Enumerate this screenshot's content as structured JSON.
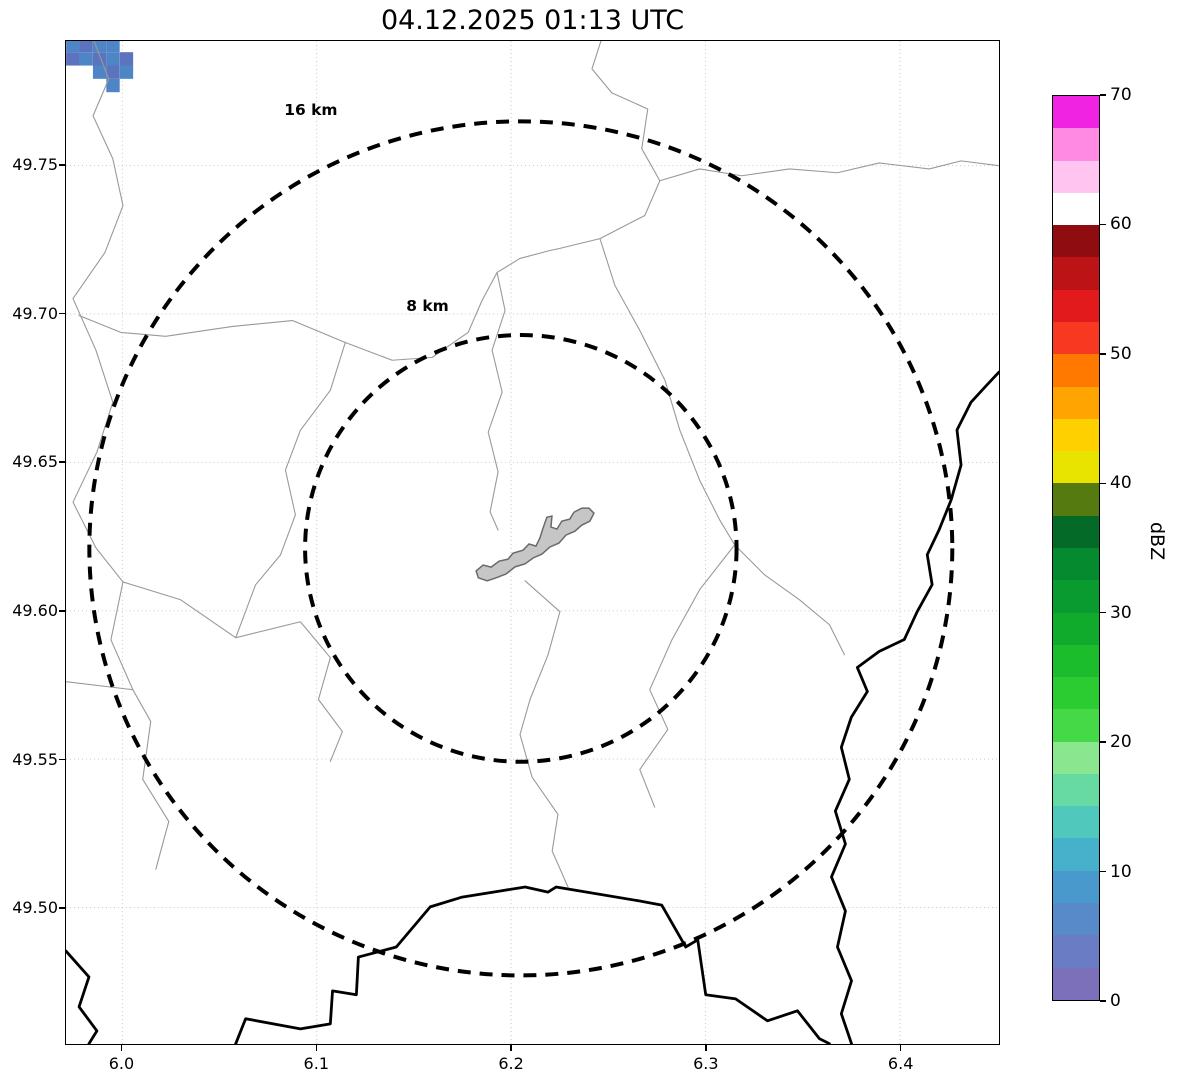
{
  "chart_data": {
    "type": "heatmap",
    "title": "04.12.2025 01:13 UTC",
    "axes": {
      "lon_min": 5.971,
      "lon_max": 6.451,
      "lat_min": 49.454,
      "lat_max": 49.792,
      "x_ticks": [
        6.0,
        6.1,
        6.2,
        6.3,
        6.4
      ],
      "x_tick_labels": [
        "6.0",
        "6.1",
        "6.2",
        "6.3",
        "6.4"
      ],
      "y_ticks": [
        49.5,
        49.55,
        49.6,
        49.65,
        49.7,
        49.75
      ],
      "y_tick_labels": [
        "49.50",
        "49.55",
        "49.60",
        "49.65",
        "49.70",
        "49.75"
      ],
      "grid": true
    },
    "colorbar": {
      "label": "dBZ",
      "vmin": 0,
      "vmax": 70,
      "ticks": [
        0,
        10,
        20,
        30,
        40,
        50,
        60,
        70
      ],
      "tick_labels": [
        "0",
        "10",
        "20",
        "30",
        "40",
        "50",
        "60",
        "70"
      ],
      "band_colors_bottom_to_top": [
        "#7d70ba",
        "#6a7cc3",
        "#5889c8",
        "#4a99cc",
        "#47b0ca",
        "#50c8bb",
        "#67daa3",
        "#8ae78f",
        "#45d948",
        "#2bcc31",
        "#1bbd2c",
        "#10ab2d",
        "#099a30",
        "#068a30",
        "#046a28",
        "#557a10",
        "#e8e400",
        "#ffd000",
        "#ffa400",
        "#ff7800",
        "#f93822",
        "#e31a1c",
        "#bc1316",
        "#8f0d10",
        "#ffffff",
        "#ffc4f0",
        "#ff8ae4",
        "#f023e3"
      ]
    },
    "range_rings": {
      "center": {
        "lon": 6.205,
        "lat": 49.621
      },
      "rings": [
        {
          "label": "8 km",
          "dlon": 0.111,
          "dlat": 0.0719,
          "label_lon": 6.157,
          "label_lat": 49.701
        },
        {
          "label": "16 km",
          "dlon": 0.222,
          "dlat": 0.1439,
          "label_lon": 6.097,
          "label_lat": 49.767
        }
      ]
    },
    "radar_echoes": {
      "cell_dlon": 0.0069,
      "cell_dlat": 0.0045,
      "cells": [
        [
          5.9745,
          49.7905,
          "#4e85c6"
        ],
        [
          5.9814,
          49.7905,
          "#5b74bd"
        ],
        [
          5.9883,
          49.7905,
          "#4e85c6"
        ],
        [
          5.9952,
          49.7905,
          "#4e85c6"
        ],
        [
          5.9745,
          49.786,
          "#5b74bd"
        ],
        [
          5.9814,
          49.786,
          "#4e85c6"
        ],
        [
          5.9883,
          49.786,
          "#5b74bd"
        ],
        [
          5.9952,
          49.786,
          "#4e85c6"
        ],
        [
          6.0021,
          49.786,
          "#5b74bd"
        ],
        [
          5.9883,
          49.7815,
          "#4e85c6"
        ],
        [
          5.9952,
          49.7815,
          "#5b74bd"
        ],
        [
          6.0021,
          49.7815,
          "#4e85c6"
        ],
        [
          5.9952,
          49.777,
          "#4e85c6"
        ]
      ]
    },
    "city_polygon": {
      "fill": "#c6c6c6",
      "stroke": "#6a6a6a",
      "points": [
        [
          6.182,
          49.6134
        ],
        [
          6.1856,
          49.6154
        ],
        [
          6.1897,
          49.6147
        ],
        [
          6.1938,
          49.6167
        ],
        [
          6.1984,
          49.6174
        ],
        [
          6.201,
          49.6194
        ],
        [
          6.2061,
          49.6204
        ],
        [
          6.2092,
          49.6225
        ],
        [
          6.2128,
          49.6218
        ],
        [
          6.2148,
          49.6245
        ],
        [
          6.2164,
          49.6278
        ],
        [
          6.2184,
          49.6315
        ],
        [
          6.221,
          49.6319
        ],
        [
          6.2205,
          49.6282
        ],
        [
          6.2236,
          49.6275
        ],
        [
          6.2261,
          49.6302
        ],
        [
          6.2302,
          49.6309
        ],
        [
          6.2323,
          49.6332
        ],
        [
          6.2364,
          49.6346
        ],
        [
          6.24,
          49.6346
        ],
        [
          6.2426,
          49.6329
        ],
        [
          6.2405,
          49.6302
        ],
        [
          6.2364,
          49.6289
        ],
        [
          6.2328,
          49.6268
        ],
        [
          6.2282,
          49.6255
        ],
        [
          6.2246,
          49.6228
        ],
        [
          6.22,
          49.6215
        ],
        [
          6.2159,
          49.6191
        ],
        [
          6.2113,
          49.6178
        ],
        [
          6.2072,
          49.6158
        ],
        [
          6.202,
          49.6148
        ],
        [
          6.1974,
          49.6124
        ],
        [
          6.1923,
          49.6111
        ],
        [
          6.1877,
          49.6101
        ],
        [
          6.1831,
          49.6111
        ]
      ]
    },
    "gray_boundaries": [
      [
        [
          5.9854,
          49.792
        ],
        [
          5.993,
          49.7792
        ],
        [
          5.9849,
          49.7668
        ],
        [
          5.9951,
          49.7523
        ],
        [
          6.0003,
          49.7365
        ],
        [
          5.991,
          49.7207
        ],
        [
          5.9746,
          49.7052
        ],
        [
          5.9864,
          49.6878
        ],
        [
          5.9951,
          49.6703
        ],
        [
          5.9869,
          49.6535
        ],
        [
          5.9746,
          49.6366
        ],
        [
          5.9864,
          49.6212
        ],
        [
          6.0003,
          49.6097
        ],
        [
          5.9941,
          49.5902
        ],
        [
          6.0054,
          49.5734
        ],
        [
          6.0146,
          49.5627
        ],
        [
          6.0105,
          49.5432
        ],
        [
          6.0239,
          49.529
        ],
        [
          6.0172,
          49.5129
        ]
      ],
      [
        [
          6.0054,
          49.5734
        ],
        [
          5.971,
          49.5761
        ]
      ],
      [
        [
          5.9777,
          49.6995
        ],
        [
          5.9992,
          49.6938
        ],
        [
          6.0223,
          49.6925
        ],
        [
          6.0567,
          49.6958
        ],
        [
          6.0875,
          49.6978
        ],
        [
          6.1147,
          49.6904
        ],
        [
          6.1388,
          49.6844
        ],
        [
          6.1594,
          49.6854
        ],
        [
          6.1779,
          49.6938
        ],
        [
          6.1851,
          49.7046
        ],
        [
          6.1928,
          49.714
        ],
        [
          6.2046,
          49.7187
        ],
        [
          6.22,
          49.7214
        ]
      ],
      [
        [
          6.2462,
          49.792
        ],
        [
          6.2416,
          49.7826
        ],
        [
          6.2518,
          49.7745
        ],
        [
          6.2703,
          49.7691
        ],
        [
          6.2672,
          49.7557
        ],
        [
          6.2765,
          49.7449
        ],
        [
          6.2688,
          49.7332
        ],
        [
          6.2457,
          49.7254
        ],
        [
          6.2251,
          49.7221
        ],
        [
          6.22,
          49.7214
        ]
      ],
      [
        [
          6.2765,
          49.7449
        ],
        [
          6.297,
          49.7489
        ],
        [
          6.3186,
          49.7466
        ],
        [
          6.3432,
          49.7489
        ],
        [
          6.3679,
          49.7476
        ],
        [
          6.3894,
          49.7509
        ],
        [
          6.4151,
          49.7489
        ],
        [
          6.4315,
          49.7516
        ],
        [
          6.451,
          49.75
        ]
      ],
      [
        [
          6.2457,
          49.7254
        ],
        [
          6.2534,
          49.7096
        ],
        [
          6.2662,
          49.6945
        ],
        [
          6.2791,
          49.6777
        ],
        [
          6.2868,
          49.6608
        ],
        [
          6.297,
          49.644
        ],
        [
          6.3073,
          49.6306
        ],
        [
          6.315,
          49.6222
        ],
        [
          6.3304,
          49.6121
        ],
        [
          6.3484,
          49.6037
        ],
        [
          6.3638,
          49.5953
        ],
        [
          6.3715,
          49.5852
        ]
      ],
      [
        [
          6.2072,
          49.6101
        ],
        [
          6.2251,
          49.5997
        ],
        [
          6.219,
          49.5852
        ],
        [
          6.2097,
          49.5701
        ],
        [
          6.2046,
          49.5583
        ],
        [
          6.2108,
          49.5439
        ],
        [
          6.2241,
          49.5314
        ],
        [
          6.2211,
          49.519
        ],
        [
          6.2293,
          49.5069
        ]
      ],
      [
        [
          6.0003,
          49.6097
        ],
        [
          6.03,
          49.6037
        ],
        [
          6.0583,
          49.5909
        ],
        [
          6.0916,
          49.5963
        ],
        [
          6.107,
          49.5842
        ],
        [
          6.1009,
          49.5701
        ],
        [
          6.1132,
          49.5593
        ],
        [
          6.107,
          49.5492
        ]
      ],
      [
        [
          6.1147,
          49.6904
        ],
        [
          6.107,
          49.6743
        ],
        [
          6.0916,
          49.6608
        ],
        [
          6.0839,
          49.6474
        ],
        [
          6.089,
          49.6323
        ],
        [
          6.0813,
          49.6188
        ],
        [
          6.0685,
          49.6087
        ],
        [
          6.0583,
          49.5909
        ]
      ],
      [
        [
          6.1928,
          49.714
        ],
        [
          6.1969,
          49.7012
        ],
        [
          6.1902,
          49.6878
        ],
        [
          6.1954,
          49.6737
        ],
        [
          6.1882,
          49.6602
        ],
        [
          6.1933,
          49.6468
        ],
        [
          6.1892,
          49.6333
        ],
        [
          6.1933,
          49.6272
        ]
      ],
      [
        [
          6.315,
          49.6222
        ],
        [
          6.297,
          49.6071
        ],
        [
          6.2827,
          49.5902
        ],
        [
          6.2713,
          49.5734
        ],
        [
          6.2806,
          49.56
        ],
        [
          6.2662,
          49.5465
        ],
        [
          6.2739,
          49.5338
        ]
      ]
    ],
    "black_borders": [
      [
        [
          6.451,
          49.6804
        ],
        [
          6.4448,
          49.6761
        ],
        [
          6.4366,
          49.6703
        ],
        [
          6.4294,
          49.6609
        ],
        [
          6.4315,
          49.6491
        ],
        [
          6.4264,
          49.6374
        ],
        [
          6.4202,
          49.6273
        ],
        [
          6.4141,
          49.6189
        ],
        [
          6.4166,
          49.6088
        ],
        [
          6.4089,
          49.5997
        ],
        [
          6.4023,
          49.5903
        ],
        [
          6.3894,
          49.5863
        ],
        [
          6.3781,
          49.5809
        ],
        [
          6.3833,
          49.5728
        ],
        [
          6.375,
          49.5641
        ],
        [
          6.3699,
          49.554
        ],
        [
          6.374,
          49.5432
        ],
        [
          6.3668,
          49.5325
        ],
        [
          6.372,
          49.5214
        ],
        [
          6.3648,
          49.5103
        ],
        [
          6.372,
          49.4988
        ],
        [
          6.3679,
          49.4867
        ],
        [
          6.3751,
          49.4753
        ],
        [
          6.3699,
          49.4642
        ],
        [
          6.3751,
          49.4541
        ]
      ],
      [
        [
          6.0583,
          49.4541
        ],
        [
          6.0634,
          49.4625
        ],
        [
          6.0916,
          49.4591
        ],
        [
          6.107,
          49.4608
        ],
        [
          6.1081,
          49.4719
        ],
        [
          6.1204,
          49.4706
        ],
        [
          6.1214,
          49.4833
        ],
        [
          6.1409,
          49.4867
        ],
        [
          6.1584,
          49.5002
        ],
        [
          6.1748,
          49.5035
        ],
        [
          6.2072,
          49.5069
        ],
        [
          6.219,
          49.5052
        ],
        [
          6.2231,
          49.5069
        ],
        [
          6.2662,
          49.5022
        ],
        [
          6.2775,
          49.5008
        ],
        [
          6.2898,
          49.4867
        ],
        [
          6.296,
          49.4891
        ],
        [
          6.3001,
          49.4706
        ],
        [
          6.3155,
          49.4692
        ],
        [
          6.3319,
          49.4618
        ],
        [
          6.3473,
          49.4652
        ],
        [
          6.3586,
          49.4558
        ],
        [
          6.3638,
          49.4541
        ]
      ],
      [
        [
          5.971,
          49.4853
        ],
        [
          5.9828,
          49.4766
        ],
        [
          5.9777,
          49.4665
        ],
        [
          5.9869,
          49.4584
        ],
        [
          5.9828,
          49.4541
        ]
      ]
    ]
  }
}
